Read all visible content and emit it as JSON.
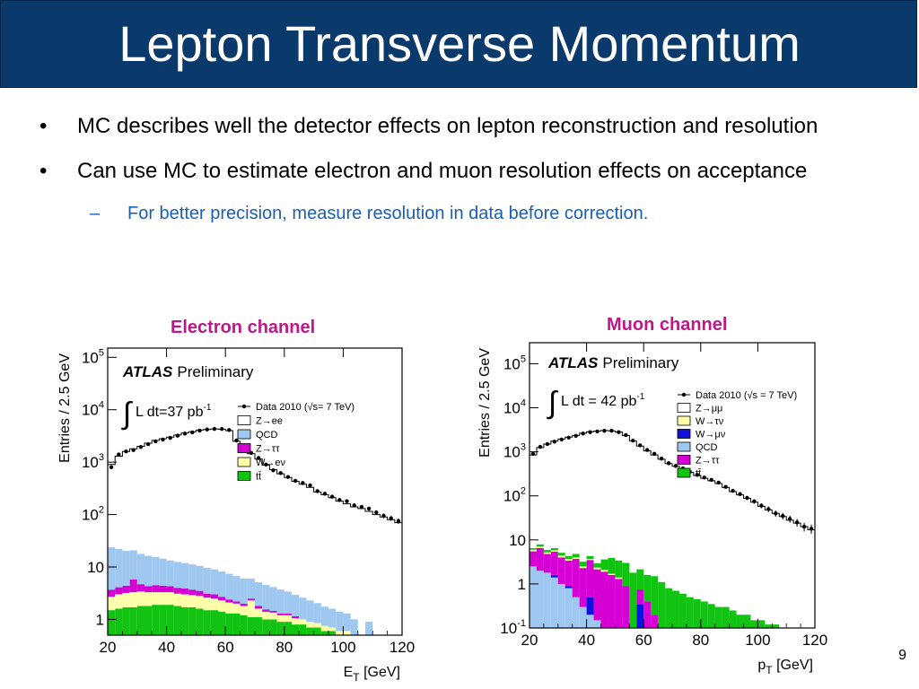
{
  "slide": {
    "title": "Lepton Transverse Momentum",
    "page_number": "9"
  },
  "bullets": [
    {
      "text": "MC describes well the detector effects on lepton reconstruction and resolution"
    },
    {
      "text": "Can use MC to estimate electron and muon resolution effects on acceptance"
    }
  ],
  "sub_bullet": {
    "text": "For better precision, measure resolution in data before correction."
  },
  "colors": {
    "title_bg": "#0a3a6b",
    "channel_label": "#c0168c",
    "sub_bullet": "#1a5fb4"
  },
  "chart_data": [
    {
      "type": "bar",
      "title": "Electron channel",
      "atlas_label": "ATLAS",
      "atlas_sub": "Preliminary",
      "lumi_label": "L dt=37 pb",
      "lumi_exp": "-1",
      "xlabel": "E",
      "xlabel_sub": "T",
      "xlabel_unit": " [GeV]",
      "ylabel": "Entries / 2.5 GeV",
      "log_y": true,
      "xlim": [
        20,
        120
      ],
      "ylim": [
        0.5,
        150000
      ],
      "x_ticks": [
        20,
        40,
        60,
        80,
        100,
        120
      ],
      "y_ticks": [
        {
          "v": 1,
          "base": "1",
          "exp": ""
        },
        {
          "v": 10,
          "base": "10",
          "exp": ""
        },
        {
          "v": 100,
          "base": "10",
          "exp": "2"
        },
        {
          "v": 1000,
          "base": "10",
          "exp": "3"
        },
        {
          "v": 10000,
          "base": "10",
          "exp": "4"
        },
        {
          "v": 100000,
          "base": "10",
          "exp": "5"
        }
      ],
      "bin_width": 2.5,
      "legend": [
        {
          "label": "Data 2010 (√s= 7 TeV)",
          "kind": "marker"
        },
        {
          "label": "Z→ee",
          "color": "#ffffff"
        },
        {
          "label": "QCD",
          "color": "#9ec8f0"
        },
        {
          "label": "Z→ττ",
          "color": "#d400d4"
        },
        {
          "label": "W→eν",
          "color": "#ffffa8"
        },
        {
          "label": "tt̄",
          "color": "#11c411"
        }
      ],
      "data": [
        800,
        1400,
        1600,
        1700,
        1950,
        2200,
        2500,
        2700,
        2900,
        3200,
        3500,
        3700,
        4000,
        4200,
        4300,
        4300,
        4100,
        2600,
        1800,
        1500,
        1200,
        900,
        700,
        620,
        520,
        440,
        400,
        360,
        280,
        250,
        220,
        190,
        180,
        150,
        140,
        130,
        110,
        95,
        85,
        75
      ],
      "stack": [
        {
          "name": "tt̄",
          "values": [
            1.5,
            1.6,
            1.7,
            1.7,
            1.8,
            1.8,
            1.9,
            1.9,
            1.9,
            1.8,
            1.7,
            1.7,
            1.6,
            1.5,
            1.5,
            1.4,
            1.3,
            1.3,
            1.2,
            1.1,
            1.1,
            1.0,
            1.0,
            0.9,
            0.9,
            0.8,
            0.8,
            0.7,
            0.7,
            0.6,
            0.6,
            0.5,
            0,
            0,
            0,
            0,
            0,
            0,
            0,
            0
          ]
        },
        {
          "name": "W→eν",
          "values": [
            1.2,
            1.4,
            1.5,
            1.6,
            1.6,
            1.5,
            1.4,
            1.4,
            1.4,
            1.3,
            1.3,
            1.2,
            1.2,
            1.1,
            1.0,
            0.9,
            0.8,
            0.7,
            0.6,
            1.2,
            0.5,
            0.4,
            0.35,
            0.3,
            0.3,
            0.25,
            0.2,
            0.2,
            0.15,
            0.15,
            0.1,
            0.1,
            0.6,
            0.4,
            0,
            0.5,
            0,
            0,
            0,
            0
          ]
        },
        {
          "name": "Z→ττ",
          "values": [
            1.0,
            1.1,
            1.2,
            2.5,
            1.3,
            1.0,
            1.2,
            1.1,
            1.0,
            0.9,
            0.9,
            0.8,
            0.7,
            0.5,
            0.5,
            0.4,
            0.3,
            0.2,
            0.2,
            0.2,
            0.2,
            0.15,
            0.1,
            0.1,
            0.1,
            0.1,
            0,
            0,
            0,
            0,
            0,
            0,
            0,
            0,
            0,
            0,
            0,
            0,
            0,
            0
          ]
        },
        {
          "name": "QCD",
          "values": [
            20,
            18,
            16,
            15,
            13,
            12,
            11,
            10,
            9,
            8.5,
            8,
            7.5,
            7,
            6.5,
            6,
            5.5,
            5,
            4.5,
            4,
            3.5,
            3.3,
            3,
            2.7,
            2.4,
            2.1,
            1.8,
            1.6,
            1.4,
            1.2,
            1.0,
            0.9,
            0.8,
            0.7,
            0.6,
            0.5,
            0.4,
            0,
            0,
            0,
            0
          ]
        }
      ],
      "mc_total": [
        900,
        1300,
        1600,
        1800,
        2000,
        2300,
        2600,
        2800,
        3000,
        3300,
        3600,
        3800,
        4100,
        4200,
        4300,
        4250,
        4000,
        2500,
        1750,
        1450,
        1150,
        880,
        720,
        600,
        510,
        430,
        380,
        330,
        270,
        240,
        210,
        180,
        160,
        140,
        130,
        115,
        100,
        90,
        80,
        70
      ]
    },
    {
      "type": "bar",
      "title": "Muon channel",
      "atlas_label": "ATLAS",
      "atlas_sub": "Preliminary",
      "lumi_label": "L dt = 42 pb",
      "lumi_exp": "-1",
      "xlabel": "p",
      "xlabel_sub": "T",
      "xlabel_unit": " [GeV]",
      "ylabel": "Entries / 2.5 GeV",
      "log_y": true,
      "xlim": [
        20,
        120
      ],
      "ylim": [
        0.1,
        300000
      ],
      "x_ticks": [
        20,
        40,
        60,
        80,
        100,
        120
      ],
      "y_ticks": [
        {
          "v": 0.1,
          "base": "10",
          "exp": "-1"
        },
        {
          "v": 1,
          "base": "1",
          "exp": ""
        },
        {
          "v": 10,
          "base": "10",
          "exp": ""
        },
        {
          "v": 100,
          "base": "10",
          "exp": "2"
        },
        {
          "v": 1000,
          "base": "10",
          "exp": "3"
        },
        {
          "v": 10000,
          "base": "10",
          "exp": "4"
        },
        {
          "v": 100000,
          "base": "10",
          "exp": "5"
        }
      ],
      "bin_width": 2.5,
      "legend": [
        {
          "label": "Data 2010 (√s = 7 TeV)",
          "kind": "marker"
        },
        {
          "label": "Z→μμ",
          "color": "#ffffff"
        },
        {
          "label": "W→τν",
          "color": "#ffffa8"
        },
        {
          "label": "W→μν",
          "color": "#1010e0"
        },
        {
          "label": "QCD",
          "color": "#9ec8f0"
        },
        {
          "label": "Z→ττ",
          "color": "#d400d4"
        },
        {
          "label": "tt̄",
          "color": "#11c411"
        }
      ],
      "data": [
        900,
        1300,
        1500,
        1700,
        1900,
        2100,
        2300,
        2600,
        2800,
        2900,
        3000,
        3000,
        2800,
        2400,
        1800,
        1400,
        1100,
        900,
        700,
        550,
        480,
        420,
        350,
        300,
        260,
        230,
        200,
        160,
        130,
        110,
        90,
        75,
        60,
        50,
        40,
        35,
        30,
        25,
        20,
        18
      ],
      "stack": [
        {
          "name": "QCD",
          "values": [
            2.5,
            2.0,
            1.8,
            1.4,
            1.0,
            0.8,
            0.5,
            0.3,
            0.2,
            0.15,
            0.1,
            0,
            0,
            0,
            0,
            0,
            0,
            0,
            0,
            0,
            0,
            0,
            0,
            0,
            0,
            0,
            0,
            0,
            0,
            0,
            0,
            0,
            0,
            0,
            0,
            0,
            0,
            0,
            0,
            0
          ]
        },
        {
          "name": "W→μν",
          "values": [
            0,
            0,
            0,
            0.2,
            0,
            0.1,
            0,
            0,
            0.3,
            0,
            0,
            0,
            0,
            0,
            0,
            0.35,
            0,
            0,
            0,
            0,
            0,
            0,
            0,
            0,
            0,
            0,
            0,
            0,
            0,
            0,
            0,
            0,
            0,
            0,
            0,
            0,
            0,
            0,
            0,
            0
          ]
        },
        {
          "name": "Z→ττ",
          "values": [
            3.0,
            4.5,
            3.0,
            3.8,
            3.0,
            2.5,
            3.2,
            2.0,
            3.0,
            2.0,
            1.8,
            1.6,
            1.3,
            0.9,
            0,
            0.4,
            0.4,
            0.2,
            0,
            0,
            0,
            0,
            0,
            0,
            0,
            0,
            0,
            0,
            0,
            0,
            0,
            0,
            0,
            0,
            0,
            0,
            0,
            0,
            0,
            0
          ]
        },
        {
          "name": "W→τν",
          "values": [
            0.5,
            0.6,
            0.4,
            0.4,
            0.4,
            0.3,
            0.3,
            0.2,
            0.2,
            0.2,
            0.2,
            0.1,
            0.1,
            0,
            0,
            0,
            0,
            0,
            0,
            0,
            0,
            0,
            0,
            0,
            0,
            0,
            0,
            0,
            0,
            0,
            0,
            0,
            0,
            0,
            0,
            0,
            0,
            0,
            0,
            0
          ]
        },
        {
          "name": "tt̄",
          "values": [
            0.5,
            0.8,
            0.7,
            0.7,
            0.7,
            0.6,
            0.8,
            0.7,
            0.6,
            0.6,
            1.5,
            2.2,
            2.0,
            2.1,
            1.8,
            1.4,
            1.2,
            1.3,
            1.1,
            0.8,
            0.7,
            0.6,
            0.5,
            0.45,
            0.4,
            0.35,
            0.3,
            0.3,
            0.25,
            0.2,
            0.2,
            0.15,
            0.15,
            0.12,
            0.12,
            0.1,
            0.1,
            0.1,
            0.1,
            0.1
          ]
        }
      ],
      "mc_total": [
        850,
        1250,
        1500,
        1750,
        1950,
        2150,
        2350,
        2650,
        2850,
        2950,
        3050,
        3000,
        2800,
        2350,
        1750,
        1350,
        1050,
        850,
        680,
        540,
        470,
        400,
        340,
        290,
        250,
        220,
        190,
        155,
        125,
        105,
        88,
        72,
        58,
        48,
        40,
        34,
        28,
        24,
        20,
        17
      ]
    }
  ]
}
